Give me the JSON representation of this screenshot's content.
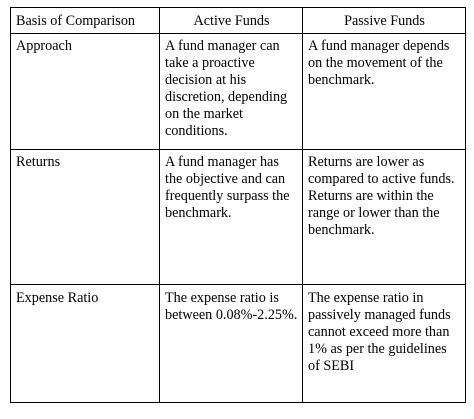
{
  "headers": [
    "Basis of Comparison",
    "Active Funds",
    "Passive Funds"
  ],
  "rows": [
    {
      "basis": "Approach",
      "active": "A fund manager can take a proactive decision at his discretion, depending on the market conditions.",
      "passive": "A fund manager depends on the movement of the benchmark."
    },
    {
      "basis": "Returns",
      "active": "A fund manager has the objective and can frequently surpass the benchmark.",
      "passive": "Returns are lower as compared to active funds. Returns are within the range or lower than the benchmark."
    },
    {
      "basis": "Expense Ratio",
      "active": "The expense ratio is between 0.08%-2.25%.",
      "passive": "The expense ratio in passively managed funds cannot exceed more than 1% as per the guidelines of SEBI"
    }
  ]
}
